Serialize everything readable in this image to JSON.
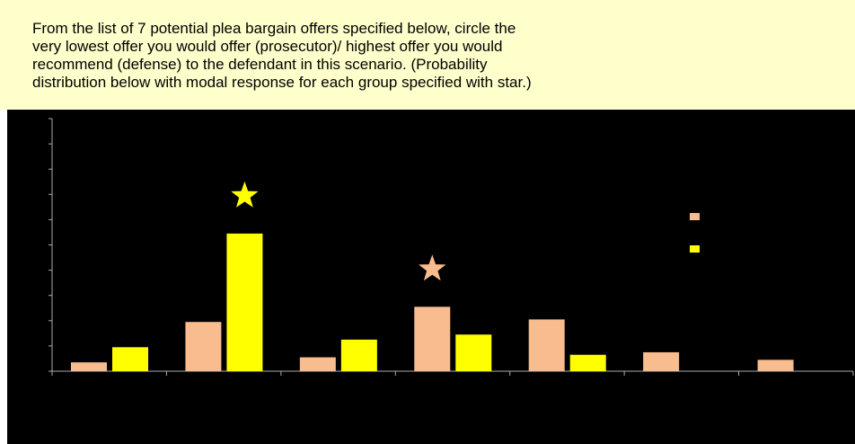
{
  "instruction_text": "From the list of 7 potential plea bargain offers specified below, circle the\nvery lowest offer you would offer (prosecutor)/ highest offer you would\nrecommend (defense) to the defendant in this scenario.  (Probability\ndistribution below with modal response for each group specified with star.)",
  "colors": {
    "background": "#000000",
    "instruction_bg": "#ffffcc",
    "axis": "#aaaaaa"
  },
  "chart_data": {
    "type": "bar",
    "title": "",
    "xlabel": "",
    "ylabel": "",
    "categories": [
      "",
      "",
      "",
      "",
      "",
      "",
      ""
    ],
    "ylim": [
      0,
      1
    ],
    "y_ticks": 10,
    "grid": false,
    "legend_position": "right",
    "series": [
      {
        "color": "#f8bc8e",
        "values": [
          0.035,
          0.195,
          0.055,
          0.255,
          0.205,
          0.075,
          0.045
        ]
      },
      {
        "color": "#ffff00",
        "values": [
          0.095,
          0.545,
          0.125,
          0.145,
          0.065,
          0,
          0
        ]
      }
    ],
    "annotations": [
      {
        "type": "star",
        "series": 1,
        "category": 1,
        "color": "#ffff00"
      },
      {
        "type": "star",
        "series": 0,
        "category": 3,
        "color": "#f8bc8e"
      }
    ]
  }
}
